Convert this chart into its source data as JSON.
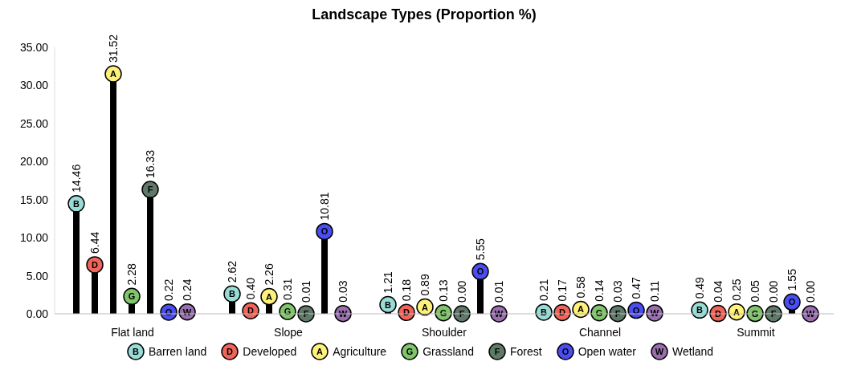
{
  "chart_data": {
    "type": "lollipop",
    "title": "Landscape Types (Proportion %)",
    "categories": [
      "Flat land",
      "Slope",
      "Shoulder",
      "Channel",
      "Summit"
    ],
    "series": [
      {
        "name": "Barren land",
        "color": "#99dcd6",
        "values": [
          14.46,
          2.62,
          1.21,
          0.21,
          0.49
        ],
        "value_labels": [
          "14.46",
          "2.62",
          "1.21",
          "0.21",
          "0.49"
        ]
      },
      {
        "name": "Developed",
        "color": "#f0645a",
        "values": [
          6.44,
          0.4,
          0.18,
          0.17,
          0.04
        ],
        "value_labels": [
          "6.44",
          "0.40",
          "0.18",
          "0.17",
          "0.04"
        ]
      },
      {
        "name": "Agriculture",
        "color": "#fff27a",
        "values": [
          31.52,
          2.26,
          0.89,
          0.58,
          0.25
        ],
        "value_labels": [
          "31.52",
          "2.26",
          "0.89",
          "0.58",
          "0.25"
        ]
      },
      {
        "name": "Grassland",
        "color": "#80c46c",
        "values": [
          2.28,
          0.31,
          0.13,
          0.14,
          0.05
        ],
        "value_labels": [
          "2.28",
          "0.31",
          "0.13",
          "0.14",
          "0.05"
        ]
      },
      {
        "name": "Forest",
        "color": "#5f7a68",
        "values": [
          16.33,
          0.01,
          0.0,
          0.03,
          0.0
        ],
        "value_labels": [
          "16.33",
          "0.01",
          "0.00",
          "0.03",
          "0.00"
        ]
      },
      {
        "name": "Open water",
        "color": "#4a4ef0",
        "values": [
          0.22,
          10.81,
          5.55,
          0.47,
          1.55
        ],
        "value_labels": [
          "0.22",
          "10.81",
          "5.55",
          "0.47",
          "1.55"
        ]
      },
      {
        "name": "Wetland",
        "color": "#9a6fb0",
        "values": [
          0.24,
          0.03,
          0.01,
          0.11,
          0.0
        ],
        "value_labels": [
          "0.24",
          "0.03",
          "0.01",
          "0.11",
          "0.00"
        ]
      }
    ],
    "ylim": [
      0,
      35
    ],
    "yticks": [
      {
        "value": 0,
        "label": "0.00"
      },
      {
        "value": 5,
        "label": "5.00"
      },
      {
        "value": 10,
        "label": "10.00"
      },
      {
        "value": 15,
        "label": "15.00"
      },
      {
        "value": 20,
        "label": "20.00"
      },
      {
        "value": 25,
        "label": "25.00"
      },
      {
        "value": 30,
        "label": "30.00"
      },
      {
        "value": 35,
        "label": "35.00"
      }
    ],
    "annotations": [
      "B",
      "D",
      "A",
      "G",
      "F",
      "O",
      "W"
    ],
    "marker": "circle",
    "legend": "bottom",
    "grid": false
  }
}
